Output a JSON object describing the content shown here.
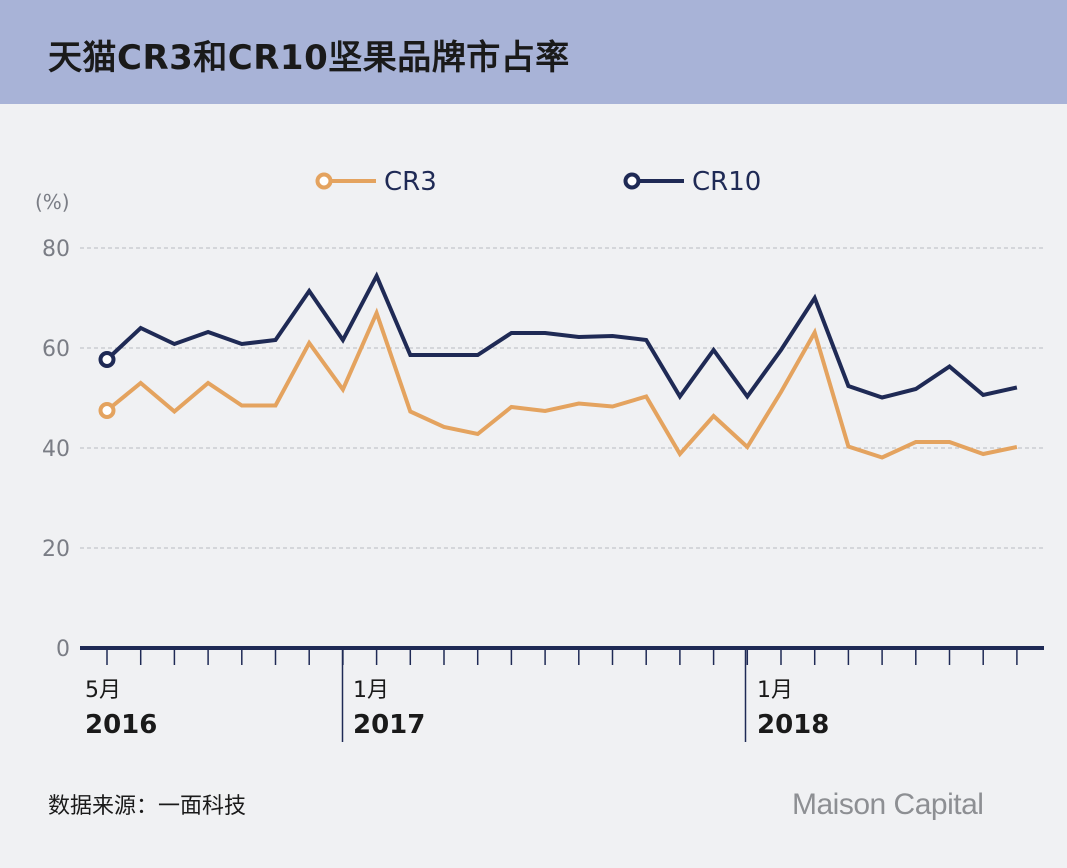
{
  "header": {
    "title": "天猫CR3和CR10坚果品牌市占率"
  },
  "footer": {
    "source": "数据来源：一面科技",
    "logo": "Maison Capital"
  },
  "colors": {
    "cr3": "#e4a35f",
    "cr10": "#1f2a55",
    "header_bg": "#a8b3d7",
    "grid": "#b7bac2",
    "axis": "#1f2a55"
  },
  "chart_data": {
    "type": "line",
    "title": "天猫CR3和CR10坚果品牌市占率",
    "ylabel": "(%)",
    "ylim": [
      0,
      80
    ],
    "yticks": [
      0,
      20,
      40,
      60,
      80
    ],
    "grid": true,
    "legend": "top",
    "x": [
      "2016-05",
      "2016-06",
      "2016-07",
      "2016-08",
      "2016-09",
      "2016-10",
      "2016-11",
      "2016-12",
      "2017-01",
      "2017-02",
      "2017-03",
      "2017-04",
      "2017-05",
      "2017-06",
      "2017-07",
      "2017-08",
      "2017-09",
      "2017-10",
      "2017-11",
      "2017-12",
      "2018-01",
      "2018-02",
      "2018-03",
      "2018-04",
      "2018-05",
      "2018-06",
      "2018-07",
      "2018-08"
    ],
    "x_tick_labels": [
      {
        "month": "5月",
        "year": "2016",
        "index": 0
      },
      {
        "month": "1月",
        "year": "2017",
        "index": 8
      },
      {
        "month": "1月",
        "year": "2018",
        "index": 20
      }
    ],
    "series": [
      {
        "name": "CR3",
        "values": [
          47.5,
          53,
          47.3,
          53,
          48.5,
          48.5,
          61,
          51.7,
          67,
          47.3,
          44.2,
          42.8,
          48.2,
          47.4,
          48.9,
          48.3,
          50.3,
          38.8,
          46.4,
          40.2,
          51.2,
          63.1,
          40.3,
          38.1,
          41.2,
          41.2,
          38.8,
          40.2
        ]
      },
      {
        "name": "CR10",
        "values": [
          57.7,
          64,
          60.8,
          63.2,
          60.8,
          61.6,
          71.4,
          61.6,
          74.4,
          58.6,
          58.6,
          58.6,
          63,
          63,
          62.2,
          62.4,
          61.6,
          50.3,
          59.6,
          50.3,
          59.6,
          70,
          52.4,
          50.1,
          51.8,
          56.3,
          50.6,
          52.1
        ]
      }
    ]
  }
}
